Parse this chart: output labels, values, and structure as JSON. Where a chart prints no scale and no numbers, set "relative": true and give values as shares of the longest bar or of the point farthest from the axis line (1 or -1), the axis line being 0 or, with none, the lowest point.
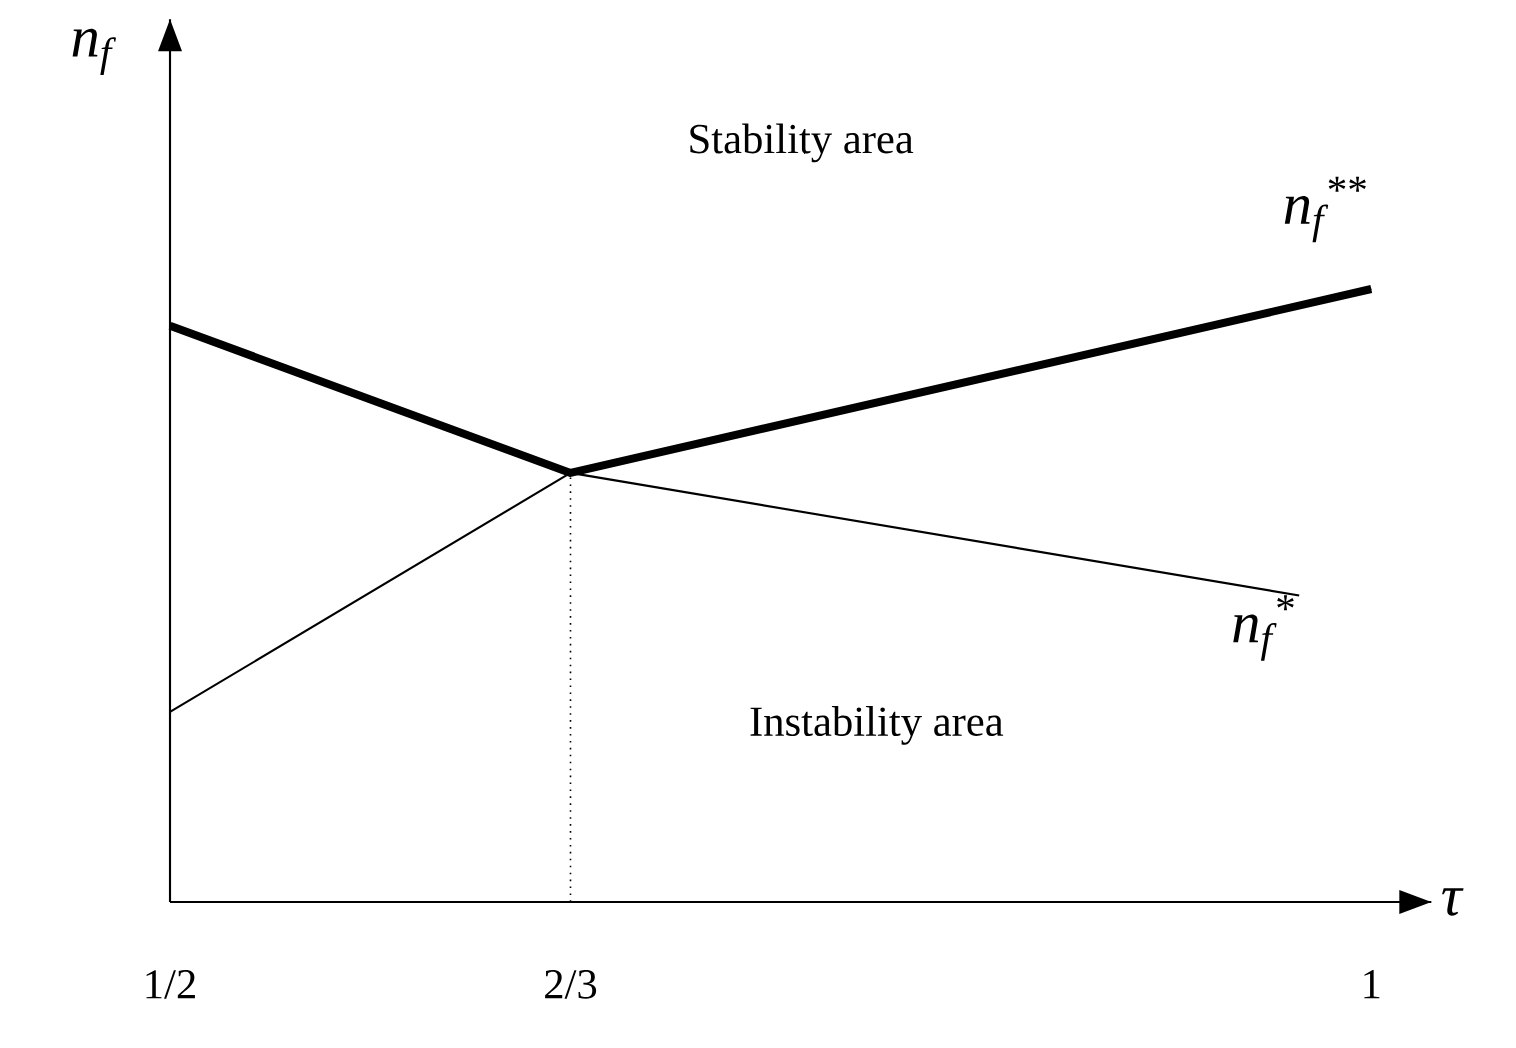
{
  "chart_data": {
    "type": "line",
    "relative": true,
    "xlabel": "τ",
    "ylabel": "n$_{f}$",
    "xlim": [
      0.5,
      1.025
    ],
    "xticks": [
      {
        "value": 0.5,
        "label": "1/2"
      },
      {
        "value": 0.6667,
        "label": "2/3"
      },
      {
        "value": 1,
        "label": "1"
      }
    ],
    "series": [
      {
        "name": "n$_{f}$$^{**}$",
        "color": "#000000",
        "x": [
          0.5,
          0.6667,
          1
        ],
        "values": [
          0.31,
          0.7,
          1
        ]
      },
      {
        "name": "n$_{f}$$^{*}$",
        "color": "#000000",
        "x": [
          0.5,
          0.6667,
          0.97
        ],
        "values": [
          0.94,
          0.7,
          0.5
        ]
      },
      {
        "color": "#000000",
        "x": [
          0.5,
          0.6667,
          1
        ],
        "values": [
          0.94,
          0.7,
          1
        ]
      }
    ],
    "ref_lines": [
      {
        "axis": "x",
        "value": 0.6667,
        "line_style": "dotted",
        "color": "#000000"
      }
    ],
    "annotations": [
      "Stability area",
      "Instability area"
    ],
    "legend": false,
    "grid": false,
    "marker": "none",
    "line_style": "solid"
  }
}
